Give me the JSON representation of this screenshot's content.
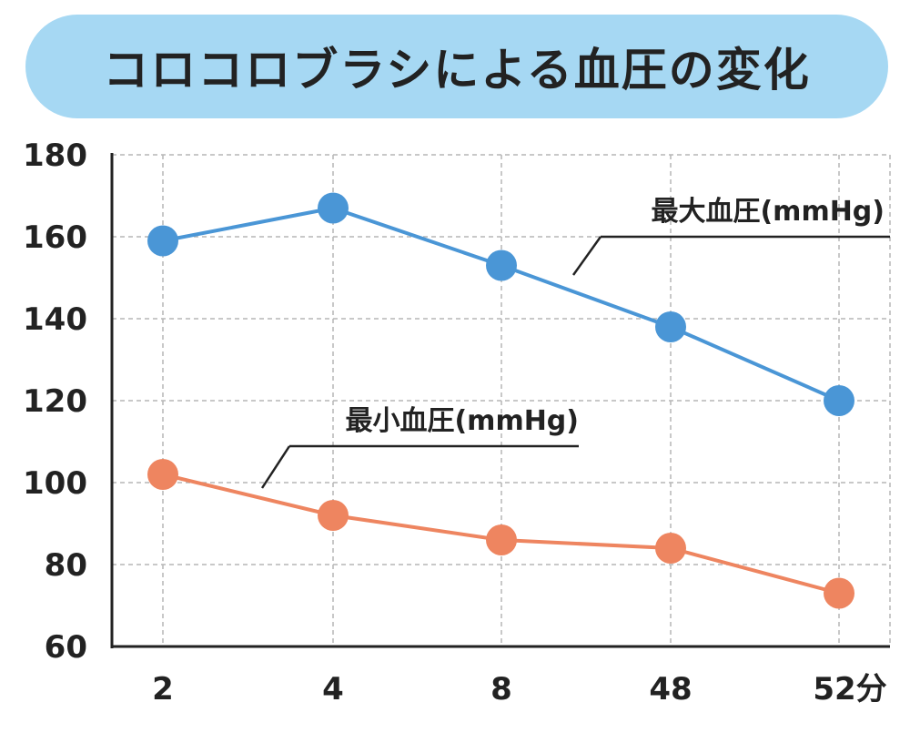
{
  "title": "コロコロブラシによる血圧の変化",
  "colors": {
    "title_bg": "#a6d8f3",
    "max_series": "#4a96d6",
    "min_series": "#ee8560",
    "axis": "#222222",
    "grid": "#b5b5b5"
  },
  "chart_data": {
    "type": "line",
    "title": "コロコロブラシによる血圧の変化",
    "categories": [
      "2",
      "4",
      "8",
      "48",
      "52分"
    ],
    "ylim": [
      60,
      180
    ],
    "yticks": [
      180,
      160,
      140,
      120,
      100,
      80,
      60
    ],
    "grid": true,
    "series": [
      {
        "name": "最大血圧(mmHg)",
        "values": [
          159,
          167,
          153,
          138,
          120
        ]
      },
      {
        "name": "最小血圧(mmHg)",
        "values": [
          102,
          92,
          86,
          84,
          73
        ]
      }
    ]
  }
}
